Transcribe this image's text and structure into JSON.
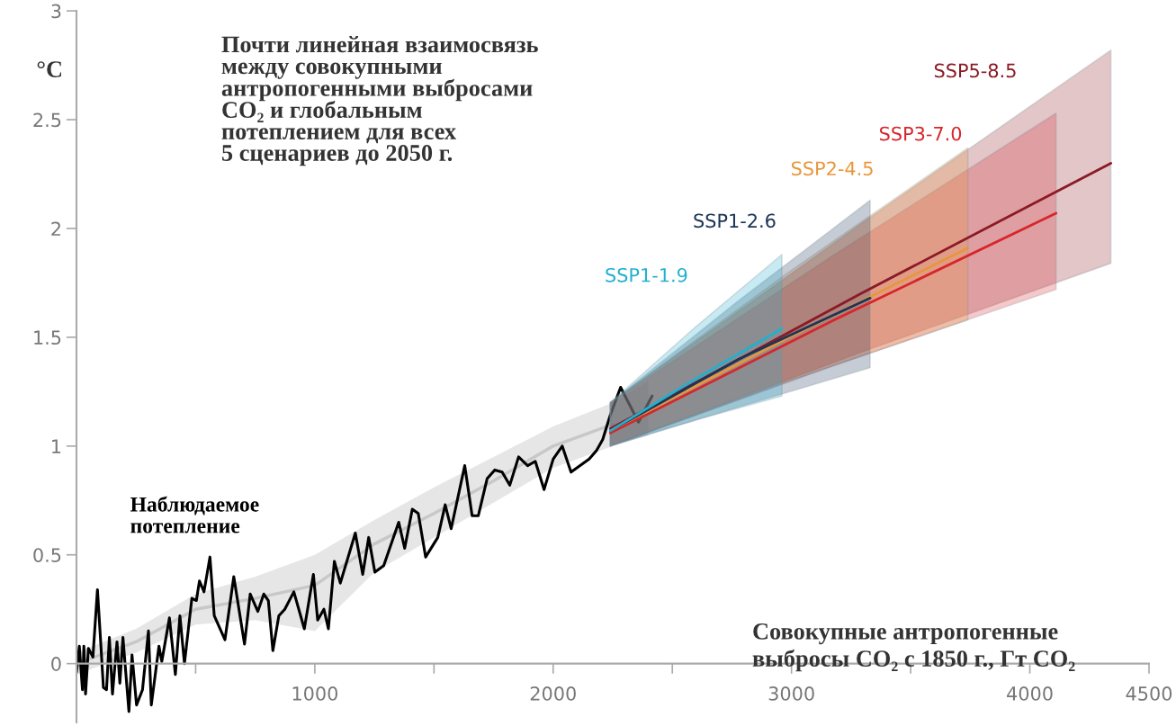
{
  "chart_data": {
    "type": "line",
    "title": "Почти линейная взаимосвязь\nмежду совокупными\nантропогенными выбросами\nCO₂ и глобальным\nпотеплением для всех\n5 сценариев до 2050 г.",
    "xlabel": "Совокупные антропогенные\nвыбросы CO₂ с 1850 г., Гт CO₂",
    "ylabel": "°C",
    "xlim": [
      0,
      4500
    ],
    "ylim": [
      -0.27,
      3
    ],
    "xticks": [
      {
        "value": 500,
        "label": null
      },
      1000,
      {
        "value": 1500,
        "label": null
      },
      2000,
      {
        "value": 2500,
        "label": null
      },
      3000,
      {
        "value": 3500,
        "label": null
      },
      4000,
      4500
    ],
    "yticks": [
      0,
      0.5,
      1,
      1.5,
      2,
      2.5,
      3
    ],
    "grid": false,
    "legend": false,
    "marker": "none",
    "line_style": "solid",
    "series": [
      {
        "name": "Наблюдаемое потепление",
        "color": "#000000",
        "x": [
          0,
          12,
          25,
          31,
          38,
          50,
          69,
          88,
          101,
          113,
          126,
          138,
          151,
          170,
          182,
          195,
          220,
          233,
          252,
          277,
          302,
          314,
          346,
          358,
          390,
          415,
          434,
          453,
          484,
          503,
          516,
          535,
          560,
          578,
          623,
          660,
          705,
          729,
          761,
          786,
          805,
          824,
          849,
          874,
          912,
          956,
          994,
          1012,
          1038,
          1057,
          1082,
          1107,
          1170,
          1201,
          1226,
          1252,
          1289,
          1352,
          1377,
          1409,
          1434,
          1465,
          1516,
          1547,
          1572,
          1629,
          1660,
          1686,
          1723,
          1755,
          1786,
          1818,
          1855,
          1893,
          1925,
          1962,
          2000,
          2038,
          2075,
          2151,
          2182,
          2208,
          2239,
          2283,
          2358,
          2415
        ],
        "values": [
          -0.04,
          0.08,
          -0.12,
          0.08,
          -0.14,
          0.07,
          0.03,
          0.34,
          0.11,
          -0.11,
          -0.12,
          0.12,
          -0.14,
          0.1,
          -0.09,
          0.12,
          -0.22,
          0.04,
          -0.19,
          -0.12,
          0.15,
          -0.19,
          0.08,
          0.01,
          0.21,
          -0.05,
          0.22,
          0.0,
          0.3,
          0.29,
          0.38,
          0.33,
          0.49,
          0.22,
          0.11,
          0.4,
          0.09,
          0.32,
          0.24,
          0.32,
          0.29,
          0.06,
          0.22,
          0.25,
          0.33,
          0.16,
          0.41,
          0.2,
          0.25,
          0.16,
          0.47,
          0.37,
          0.6,
          0.41,
          0.58,
          0.42,
          0.45,
          0.65,
          0.53,
          0.71,
          0.69,
          0.49,
          0.58,
          0.73,
          0.62,
          0.91,
          0.68,
          0.68,
          0.85,
          0.89,
          0.88,
          0.82,
          0.95,
          0.91,
          0.93,
          0.8,
          0.94,
          1.0,
          0.88,
          0.94,
          0.98,
          1.03,
          1.14,
          1.27,
          1.11,
          1.23
        ]
      },
      {
        "color": "#c8c8c8",
        "x": [
          0,
          250,
          500,
          750,
          1000,
          1250,
          1500,
          1750,
          2000,
          2250,
          2400
        ],
        "values": [
          0.0,
          0.1,
          0.25,
          0.3,
          0.36,
          0.55,
          0.69,
          0.84,
          1.0,
          1.1,
          null
        ],
        "lower": [
          -0.05,
          0.05,
          0.18,
          0.2,
          0.15,
          0.42,
          0.58,
          0.74,
          0.9,
          1.0,
          1.05
        ],
        "upper": [
          0.05,
          0.16,
          0.32,
          0.4,
          0.5,
          0.66,
          0.81,
          0.95,
          1.09,
          1.2,
          1.3
        ]
      },
      {
        "name": "SSP5-8.5",
        "color": "#8b1a25",
        "x": [
          2240,
          3290,
          4340
        ],
        "values": [
          1.08,
          1.7,
          2.3
        ],
        "lower": [
          1.0,
          1.43,
          1.84
        ],
        "upper": [
          1.2,
          2.02,
          2.82
        ]
      },
      {
        "name": "SSP3-7.0",
        "color": "#d7262b",
        "x": [
          2240,
          3180,
          4110
        ],
        "values": [
          1.06,
          1.58,
          2.07
        ],
        "lower": [
          1.0,
          1.37,
          1.72
        ],
        "upper": [
          1.2,
          1.88,
          2.53
        ]
      },
      {
        "name": "SSP2-4.5",
        "color": "#e8963a",
        "x": [
          2240,
          2990,
          3740
        ],
        "values": [
          1.07,
          1.5,
          1.91
        ],
        "lower": [
          1.0,
          1.3,
          1.58
        ],
        "upper": [
          1.2,
          1.8,
          2.37
        ]
      },
      {
        "name": "SSP1-2.6",
        "color": "#1d3557",
        "x": [
          2240,
          2780,
          3330
        ],
        "values": [
          1.07,
          1.4,
          1.68
        ],
        "lower": [
          1.0,
          1.18,
          1.36
        ],
        "upper": [
          1.2,
          1.67,
          2.13
        ]
      },
      {
        "name": "SSP1-1.9",
        "color": "#22b0cf",
        "x": [
          2240,
          2600,
          2960
        ],
        "values": [
          1.07,
          1.31,
          1.54
        ],
        "lower": [
          1.0,
          1.12,
          1.23
        ],
        "upper": [
          1.2,
          1.55,
          1.88
        ]
      }
    ]
  }
}
